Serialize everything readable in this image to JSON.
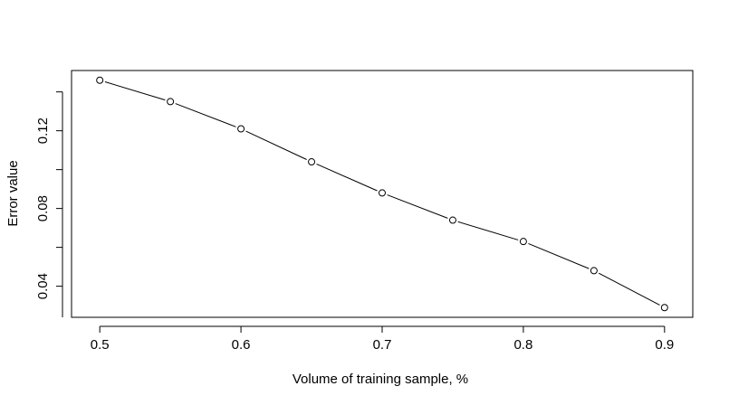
{
  "chart_data": {
    "type": "line",
    "title": "",
    "xlabel": "Volume of training sample, %",
    "ylabel": "Error value",
    "x": [
      0.5,
      0.55,
      0.6,
      0.65,
      0.7,
      0.75,
      0.8,
      0.85,
      0.9
    ],
    "series": [
      {
        "values": [
          0.146,
          0.135,
          0.121,
          0.104,
          0.088,
          0.074,
          0.063,
          0.048,
          0.029
        ]
      }
    ],
    "xticks": [
      "0.5",
      "0.6",
      "0.7",
      "0.8",
      "0.9"
    ],
    "xtick_values": [
      0.5,
      0.6,
      0.7,
      0.8,
      0.9
    ],
    "yticks": [
      "0.04",
      "0.08",
      "0.12"
    ],
    "ytick_values": [
      0.04,
      0.08,
      0.12
    ],
    "xlim": [
      0.48,
      0.92
    ],
    "ylim": [
      0.024,
      0.151
    ],
    "grid": false,
    "line_color": "#000000",
    "marker": "open-circle"
  }
}
